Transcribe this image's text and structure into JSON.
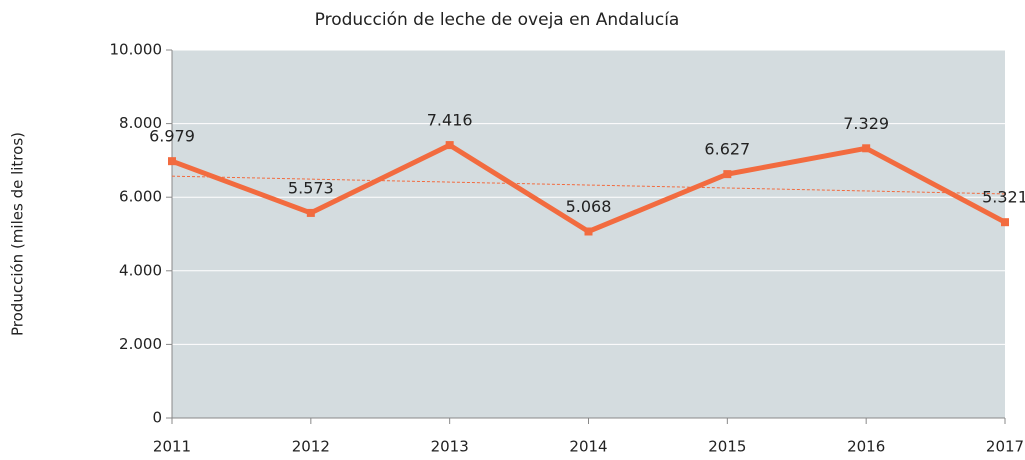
{
  "chart_data": {
    "type": "line",
    "title": "Producción de leche de oveja en Andalucía",
    "y_label": "Producción (miles de litros)",
    "x": [
      2011,
      2012,
      2013,
      2014,
      2015,
      2016,
      2017
    ],
    "series": [
      {
        "color": "#f26b3f",
        "values": [
          6979,
          5573,
          7416,
          5068,
          6627,
          7329,
          5321
        ],
        "value_labels": [
          "6.979",
          "5.573",
          "7.416",
          "5.068",
          "6.627",
          "7.329",
          "5.321"
        ]
      }
    ],
    "trendline": "linear",
    "xlim": [
      2011,
      2017
    ],
    "xticks": [
      2011,
      2012,
      2013,
      2014,
      2015,
      2016,
      2017
    ],
    "ylim": [
      0,
      10000
    ],
    "yticks": [
      0,
      {
        "value": 2000,
        "label": "2.000"
      },
      {
        "value": 4000,
        "label": "4.000"
      },
      {
        "value": 6000,
        "label": "6.000"
      },
      {
        "value": 8000,
        "label": "8.000"
      },
      {
        "value": 10000,
        "label": "10.000"
      }
    ],
    "grid": true
  }
}
